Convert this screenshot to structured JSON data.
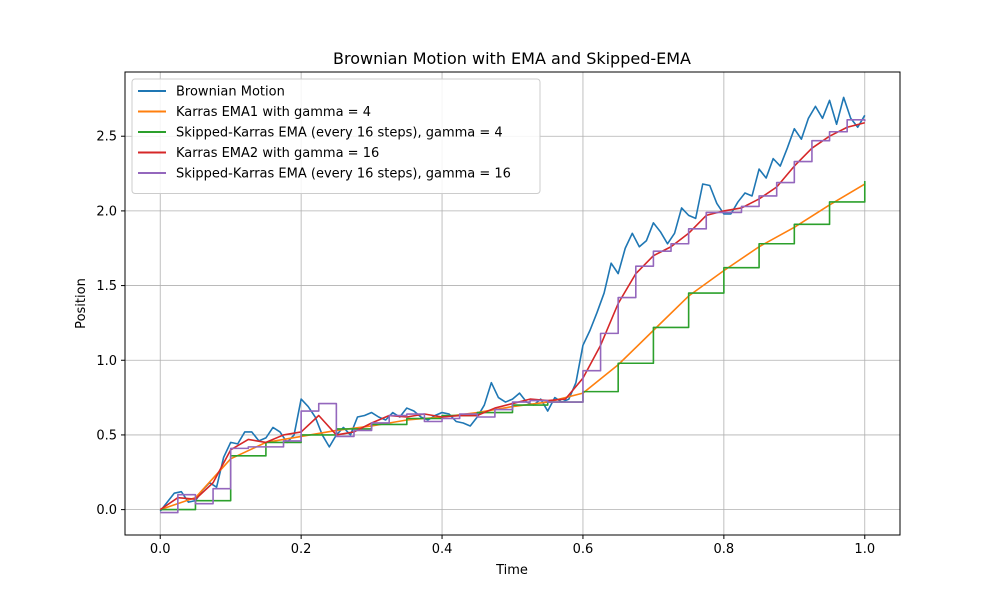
{
  "chart_data": {
    "type": "line",
    "title": "Brownian Motion with EMA and Skipped-EMA",
    "xlabel": "Time",
    "ylabel": "Position",
    "xlim": [
      -0.05,
      1.05
    ],
    "ylim": [
      -0.17,
      2.93
    ],
    "xticks": [
      0.0,
      0.2,
      0.4,
      0.6,
      0.8,
      1.0
    ],
    "xtick_labels": [
      "0.0",
      "0.2",
      "0.4",
      "0.6",
      "0.8",
      "1.0"
    ],
    "yticks": [
      0.0,
      0.5,
      1.0,
      1.5,
      2.0,
      2.5
    ],
    "ytick_labels": [
      "0.0",
      "0.5",
      "1.0",
      "1.5",
      "2.0",
      "2.5"
    ],
    "grid": true,
    "legend_position": "top-left",
    "series": [
      {
        "name": "Brownian Motion",
        "color": "#1f77b4",
        "step": false,
        "x": [
          0.0,
          0.01,
          0.02,
          0.03,
          0.04,
          0.05,
          0.06,
          0.07,
          0.08,
          0.09,
          0.1,
          0.11,
          0.12,
          0.13,
          0.14,
          0.15,
          0.16,
          0.17,
          0.18,
          0.19,
          0.2,
          0.21,
          0.22,
          0.23,
          0.24,
          0.25,
          0.26,
          0.27,
          0.28,
          0.29,
          0.3,
          0.31,
          0.32,
          0.33,
          0.34,
          0.35,
          0.36,
          0.37,
          0.38,
          0.39,
          0.4,
          0.41,
          0.42,
          0.43,
          0.44,
          0.45,
          0.46,
          0.47,
          0.48,
          0.49,
          0.5,
          0.51,
          0.52,
          0.53,
          0.54,
          0.55,
          0.56,
          0.57,
          0.58,
          0.59,
          0.6,
          0.61,
          0.62,
          0.63,
          0.64,
          0.65,
          0.66,
          0.67,
          0.68,
          0.69,
          0.7,
          0.71,
          0.72,
          0.73,
          0.74,
          0.75,
          0.76,
          0.77,
          0.78,
          0.79,
          0.8,
          0.81,
          0.82,
          0.83,
          0.84,
          0.85,
          0.86,
          0.87,
          0.88,
          0.89,
          0.9,
          0.91,
          0.92,
          0.93,
          0.94,
          0.95,
          0.96,
          0.97,
          0.98,
          0.99,
          1.0
        ],
        "y": [
          -0.01,
          0.05,
          0.11,
          0.12,
          0.05,
          0.06,
          0.13,
          0.18,
          0.15,
          0.35,
          0.45,
          0.44,
          0.52,
          0.52,
          0.46,
          0.48,
          0.55,
          0.52,
          0.45,
          0.5,
          0.74,
          0.69,
          0.62,
          0.5,
          0.42,
          0.5,
          0.55,
          0.5,
          0.62,
          0.63,
          0.65,
          0.62,
          0.6,
          0.65,
          0.62,
          0.68,
          0.66,
          0.62,
          0.6,
          0.63,
          0.65,
          0.64,
          0.59,
          0.58,
          0.56,
          0.62,
          0.7,
          0.85,
          0.75,
          0.72,
          0.74,
          0.78,
          0.72,
          0.7,
          0.74,
          0.66,
          0.75,
          0.72,
          0.74,
          0.85,
          1.1,
          1.2,
          1.32,
          1.45,
          1.65,
          1.58,
          1.75,
          1.85,
          1.76,
          1.8,
          1.92,
          1.86,
          1.78,
          1.85,
          2.02,
          1.97,
          1.95,
          2.18,
          2.17,
          2.05,
          1.98,
          1.98,
          2.06,
          2.12,
          2.1,
          2.28,
          2.22,
          2.35,
          2.3,
          2.42,
          2.55,
          2.48,
          2.62,
          2.7,
          2.62,
          2.74,
          2.58,
          2.76,
          2.62,
          2.56,
          2.64
        ]
      },
      {
        "name": "Karras EMA1 with gamma = 4",
        "color": "#ff7f0e",
        "step": false,
        "x": [
          0.0,
          0.05,
          0.1,
          0.15,
          0.2,
          0.25,
          0.3,
          0.35,
          0.4,
          0.45,
          0.5,
          0.55,
          0.6,
          0.65,
          0.7,
          0.75,
          0.8,
          0.85,
          0.9,
          0.95,
          1.0
        ],
        "y": [
          0.0,
          0.08,
          0.34,
          0.45,
          0.49,
          0.53,
          0.56,
          0.6,
          0.62,
          0.65,
          0.69,
          0.72,
          0.78,
          0.97,
          1.2,
          1.43,
          1.6,
          1.76,
          1.89,
          2.04,
          2.18
        ]
      },
      {
        "name": "Skipped-Karras EMA (every 16 steps), gamma = 4",
        "color": "#2ca02c",
        "step": true,
        "x": [
          0.0,
          0.05,
          0.1,
          0.15,
          0.2,
          0.25,
          0.3,
          0.35,
          0.4,
          0.45,
          0.5,
          0.55,
          0.6,
          0.65,
          0.7,
          0.75,
          0.8,
          0.85,
          0.9,
          0.95,
          1.0
        ],
        "y": [
          0.0,
          0.06,
          0.36,
          0.45,
          0.5,
          0.54,
          0.57,
          0.61,
          0.63,
          0.65,
          0.7,
          0.72,
          0.79,
          0.98,
          1.22,
          1.45,
          1.62,
          1.78,
          1.91,
          2.06,
          2.2
        ]
      },
      {
        "name": "Karras EMA2 with gamma = 16",
        "color": "#d62728",
        "step": false,
        "x": [
          0.0,
          0.025,
          0.05,
          0.075,
          0.1,
          0.125,
          0.15,
          0.175,
          0.2,
          0.225,
          0.25,
          0.275,
          0.3,
          0.325,
          0.35,
          0.375,
          0.4,
          0.425,
          0.45,
          0.475,
          0.5,
          0.525,
          0.55,
          0.575,
          0.6,
          0.625,
          0.65,
          0.675,
          0.7,
          0.725,
          0.75,
          0.775,
          0.8,
          0.825,
          0.85,
          0.875,
          0.9,
          0.925,
          0.95,
          0.975,
          1.0
        ],
        "y": [
          0.0,
          0.08,
          0.07,
          0.18,
          0.4,
          0.47,
          0.45,
          0.5,
          0.52,
          0.63,
          0.5,
          0.52,
          0.58,
          0.63,
          0.62,
          0.64,
          0.62,
          0.63,
          0.63,
          0.68,
          0.71,
          0.74,
          0.73,
          0.74,
          0.88,
          1.1,
          1.38,
          1.58,
          1.7,
          1.76,
          1.85,
          1.97,
          2.0,
          2.02,
          2.08,
          2.16,
          2.3,
          2.42,
          2.5,
          2.56,
          2.59
        ]
      },
      {
        "name": "Skipped-Karras EMA (every 16 steps), gamma = 16",
        "color": "#9467bd",
        "step": true,
        "x": [
          0.0,
          0.025,
          0.05,
          0.075,
          0.1,
          0.125,
          0.15,
          0.175,
          0.2,
          0.225,
          0.25,
          0.275,
          0.3,
          0.325,
          0.35,
          0.375,
          0.4,
          0.425,
          0.45,
          0.475,
          0.5,
          0.525,
          0.55,
          0.575,
          0.6,
          0.625,
          0.65,
          0.675,
          0.7,
          0.725,
          0.75,
          0.775,
          0.8,
          0.825,
          0.85,
          0.875,
          0.9,
          0.925,
          0.95,
          0.975,
          1.0
        ],
        "y": [
          -0.02,
          0.1,
          0.04,
          0.14,
          0.41,
          0.42,
          0.42,
          0.46,
          0.66,
          0.71,
          0.49,
          0.53,
          0.58,
          0.63,
          0.64,
          0.59,
          0.61,
          0.64,
          0.62,
          0.67,
          0.72,
          0.73,
          0.72,
          0.72,
          0.93,
          1.18,
          1.42,
          1.63,
          1.73,
          1.78,
          1.88,
          1.99,
          1.99,
          2.03,
          2.1,
          2.19,
          2.33,
          2.47,
          2.53,
          2.61,
          2.6
        ]
      }
    ]
  }
}
